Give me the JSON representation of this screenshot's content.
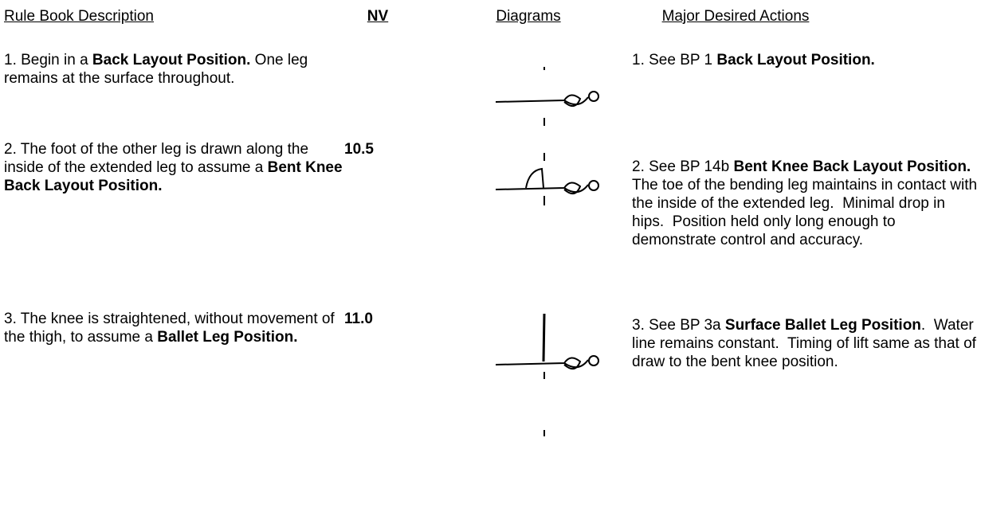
{
  "header": {
    "columns": [
      "Rule Book Description",
      "NV",
      "Diagrams",
      "Major Desired Actions"
    ]
  },
  "table": {
    "rows": [
      {
        "description": [
          {
            "text": "1. Begin in a ",
            "bold": false
          },
          {
            "text": "Back Layout Position.",
            "bold": true
          },
          {
            "text": " One leg remains at the surface throughout.",
            "bold": false
          }
        ],
        "actions": [
          {
            "text": "1. See BP 1 ",
            "bold": false
          },
          {
            "text": "Back Layout Position.",
            "bold": true
          }
        ]
      },
      {
        "description": [
          {
            "text": "2. The foot of the other leg is drawn along the inside of the extended leg to assume a ",
            "bold": false
          },
          {
            "text": "Bent Knee Back Layout Position.",
            "bold": true
          }
        ],
        "nv": "10.5",
        "actions": [
          {
            "text": "2. See BP 14b ",
            "bold": false
          },
          {
            "text": "Bent Knee Back Layout Position.",
            "bold": true
          },
          {
            "text": "   The toe of the bending leg maintains in contact with the inside of the extended leg.  Minimal drop in hips.  Position held only long enough to demonstrate control and accuracy.",
            "bold": false
          }
        ]
      },
      {
        "description": [
          {
            "text": "3. The knee is straightened, without movement of the thigh, to assume a ",
            "bold": false
          },
          {
            "text": "Ballet Leg Position.",
            "bold": true
          }
        ],
        "nv": "11.0",
        "actions": [
          {
            "text": "3. See BP 3a ",
            "bold": false
          },
          {
            "text": "Surface Ballet Leg Position",
            "bold": true
          },
          {
            "text": ".  Water line remains constant.  Timing of lift same as that of draw to the bent knee position.",
            "bold": false
          }
        ]
      }
    ]
  }
}
